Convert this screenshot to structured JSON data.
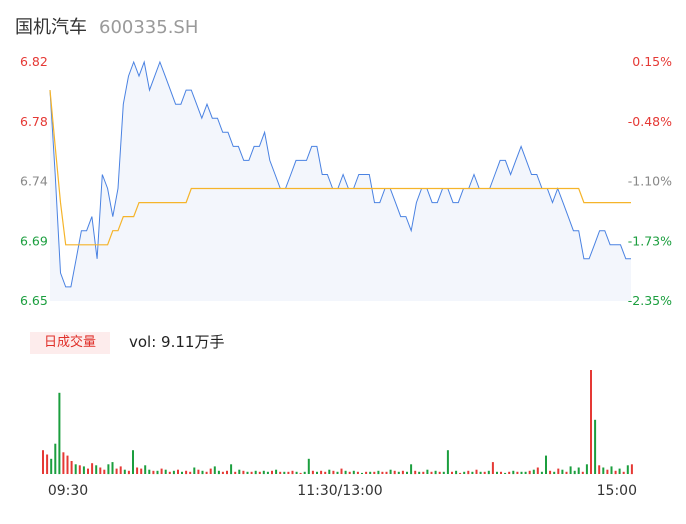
{
  "header": {
    "name": "国机汽车",
    "code": "600335.SH"
  },
  "chart_data": [
    {
      "type": "line",
      "title": "",
      "y_left_ticks": [
        "6.82",
        "6.78",
        "6.74",
        "6.69",
        "6.65"
      ],
      "y_right_ticks": [
        "0.15%",
        "-0.48%",
        "-1.10%",
        "-1.73%",
        "-2.35%"
      ],
      "ylim": [
        6.65,
        6.82
      ],
      "series": [
        {
          "role": "price",
          "values": [
            6.8,
            6.74,
            6.67,
            6.66,
            6.66,
            6.68,
            6.7,
            6.7,
            6.71,
            6.68,
            6.74,
            6.73,
            6.71,
            6.73,
            6.79,
            6.81,
            6.82,
            6.81,
            6.82,
            6.8,
            6.81,
            6.82,
            6.81,
            6.8,
            6.79,
            6.79,
            6.8,
            6.8,
            6.79,
            6.78,
            6.79,
            6.78,
            6.78,
            6.77,
            6.77,
            6.76,
            6.76,
            6.75,
            6.75,
            6.76,
            6.76,
            6.77,
            6.75,
            6.74,
            6.73,
            6.73,
            6.74,
            6.75,
            6.75,
            6.75,
            6.76,
            6.76,
            6.74,
            6.74,
            6.73,
            6.73,
            6.74,
            6.73,
            6.73,
            6.74,
            6.74,
            6.74,
            6.72,
            6.72,
            6.73,
            6.73,
            6.72,
            6.71,
            6.71,
            6.7,
            6.72,
            6.73,
            6.73,
            6.72,
            6.72,
            6.73,
            6.73,
            6.72,
            6.72,
            6.73,
            6.73,
            6.74,
            6.73,
            6.73,
            6.73,
            6.74,
            6.75,
            6.75,
            6.74,
            6.75,
            6.76,
            6.75,
            6.74,
            6.74,
            6.73,
            6.73,
            6.72,
            6.73,
            6.72,
            6.71,
            6.7,
            6.7,
            6.68,
            6.68,
            6.69,
            6.7,
            6.7,
            6.69,
            6.69,
            6.69,
            6.68,
            6.68
          ],
          "color": "#4a82e2"
        },
        {
          "role": "average",
          "values": [
            6.8,
            6.76,
            6.72,
            6.69,
            6.69,
            6.69,
            6.69,
            6.69,
            6.69,
            6.69,
            6.69,
            6.69,
            6.7,
            6.7,
            6.71,
            6.71,
            6.71,
            6.72,
            6.72,
            6.72,
            6.72,
            6.72,
            6.72,
            6.72,
            6.72,
            6.72,
            6.72,
            6.73,
            6.73,
            6.73,
            6.73,
            6.73,
            6.73,
            6.73,
            6.73,
            6.73,
            6.73,
            6.73,
            6.73,
            6.73,
            6.73,
            6.73,
            6.73,
            6.73,
            6.73,
            6.73,
            6.73,
            6.73,
            6.73,
            6.73,
            6.73,
            6.73,
            6.73,
            6.73,
            6.73,
            6.73,
            6.73,
            6.73,
            6.73,
            6.73,
            6.73,
            6.73,
            6.73,
            6.73,
            6.73,
            6.73,
            6.73,
            6.73,
            6.73,
            6.73,
            6.73,
            6.73,
            6.73,
            6.73,
            6.73,
            6.73,
            6.73,
            6.73,
            6.73,
            6.73,
            6.73,
            6.73,
            6.73,
            6.73,
            6.73,
            6.73,
            6.73,
            6.73,
            6.73,
            6.73,
            6.73,
            6.73,
            6.73,
            6.73,
            6.73,
            6.73,
            6.73,
            6.73,
            6.73,
            6.73,
            6.73,
            6.73,
            6.72,
            6.72,
            6.72,
            6.72,
            6.72,
            6.72,
            6.72,
            6.72,
            6.72,
            6.72
          ],
          "color": "#f5b42a"
        }
      ],
      "colors": {
        "up": "#e53935",
        "down": "#1b9e3e",
        "neutral": "#888888"
      }
    },
    {
      "type": "bar",
      "tag": "日成交量",
      "label": "vol: 9.11万手",
      "x_ticks": [
        "09:30",
        "11:30/13:00",
        "15:00"
      ],
      "values": [
        22,
        18,
        14,
        28,
        75,
        20,
        17,
        12,
        9,
        8,
        7,
        5,
        10,
        8,
        6,
        4,
        9,
        11,
        5,
        7,
        4,
        3,
        22,
        6,
        5,
        8,
        4,
        3,
        3,
        5,
        4,
        2,
        3,
        4,
        2,
        3,
        2,
        6,
        4,
        3,
        2,
        5,
        7,
        3,
        2,
        3,
        9,
        2,
        4,
        3,
        2,
        2,
        3,
        2,
        3,
        2,
        3,
        4,
        2,
        2,
        2,
        3,
        2,
        1,
        2,
        14,
        3,
        2,
        3,
        2,
        4,
        3,
        2,
        5,
        3,
        2,
        3,
        2,
        1,
        2,
        2,
        2,
        3,
        2,
        2,
        4,
        3,
        2,
        3,
        2,
        9,
        3,
        2,
        2,
        4,
        2,
        3,
        2,
        2,
        22,
        2,
        3,
        1,
        2,
        3,
        2,
        4,
        2,
        2,
        3,
        11,
        2,
        2,
        1,
        2,
        3,
        2,
        2,
        2,
        3,
        4,
        6,
        2,
        17,
        3,
        2,
        5,
        4,
        2,
        7,
        3,
        6,
        2,
        9,
        96,
        50,
        8,
        6,
        4,
        7,
        3,
        5,
        2,
        8,
        9
      ],
      "directions": [
        "u",
        "u",
        "d",
        "d",
        "d",
        "u",
        "u",
        "u",
        "d",
        "u",
        "d",
        "u",
        "u",
        "d",
        "u",
        "u",
        "d",
        "d",
        "u",
        "u",
        "d",
        "u",
        "d",
        "u",
        "u",
        "d",
        "d",
        "u",
        "d",
        "u",
        "d",
        "u",
        "d",
        "u",
        "d",
        "u",
        "u",
        "d",
        "u",
        "d",
        "u",
        "u",
        "d",
        "d",
        "u",
        "u",
        "d",
        "u",
        "d",
        "u",
        "d",
        "u",
        "d",
        "u",
        "d",
        "d",
        "u",
        "d",
        "u",
        "d",
        "u",
        "u",
        "d",
        "u",
        "d",
        "d",
        "u",
        "d",
        "u",
        "u",
        "d",
        "u",
        "d",
        "u",
        "d",
        "u",
        "d",
        "u",
        "d",
        "u",
        "d",
        "u",
        "d",
        "u",
        "u",
        "d",
        "u",
        "d",
        "u",
        "d",
        "d",
        "u",
        "d",
        "u",
        "d",
        "u",
        "d",
        "u",
        "d",
        "d",
        "u",
        "d",
        "u",
        "d",
        "u",
        "d",
        "u",
        "d",
        "u",
        "d",
        "u",
        "d",
        "u",
        "d",
        "u",
        "d",
        "u",
        "d",
        "d",
        "u",
        "d",
        "u",
        "d",
        "d",
        "u",
        "d",
        "u",
        "d",
        "u",
        "d",
        "d",
        "d",
        "u",
        "d",
        "u",
        "d",
        "u",
        "d",
        "u",
        "d",
        "u",
        "d",
        "u",
        "d",
        "u"
      ]
    }
  ]
}
